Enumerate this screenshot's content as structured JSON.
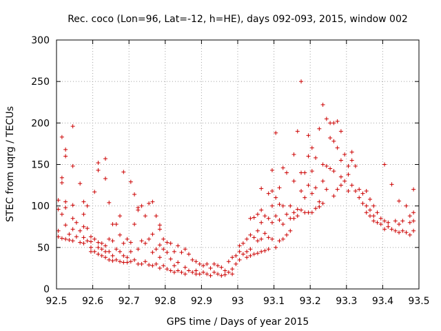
{
  "chart_data": {
    "type": "scatter",
    "title": "Rec. coco (Lon=96, Lat=-12, h=HE), days 092-093, 2015, window 002",
    "xlabel": "GPS time / Days of year 2015",
    "ylabel": "STEC from uqrg / TECUs",
    "xlim": [
      92.5,
      93.5
    ],
    "ylim": [
      0,
      300
    ],
    "x_ticks": [
      "92.5",
      "92.6",
      "92.7",
      "92.8",
      "92.9",
      "93",
      "93.1",
      "93.2",
      "93.3",
      "93.4",
      "93.5"
    ],
    "y_ticks": [
      "0",
      "50",
      "100",
      "150",
      "200",
      "250",
      "300"
    ],
    "grid": true,
    "marker": "+",
    "color": "#cc0000",
    "points": [
      [
        92.505,
        107
      ],
      [
        92.505,
        96
      ],
      [
        92.505,
        70
      ],
      [
        92.505,
        63
      ],
      [
        92.515,
        183
      ],
      [
        92.515,
        134
      ],
      [
        92.515,
        128
      ],
      [
        92.515,
        90
      ],
      [
        92.515,
        61
      ],
      [
        92.525,
        168
      ],
      [
        92.525,
        160
      ],
      [
        92.525,
        105
      ],
      [
        92.525,
        98
      ],
      [
        92.525,
        77
      ],
      [
        92.525,
        60
      ],
      [
        92.535,
        66
      ],
      [
        92.535,
        59
      ],
      [
        92.545,
        196
      ],
      [
        92.545,
        148
      ],
      [
        92.545,
        101
      ],
      [
        92.545,
        85
      ],
      [
        92.545,
        72
      ],
      [
        92.545,
        58
      ],
      [
        92.555,
        80
      ],
      [
        92.555,
        63
      ],
      [
        92.565,
        127
      ],
      [
        92.565,
        70
      ],
      [
        92.565,
        56
      ],
      [
        92.575,
        105
      ],
      [
        92.575,
        90
      ],
      [
        92.575,
        75
      ],
      [
        92.575,
        62
      ],
      [
        92.575,
        55
      ],
      [
        92.585,
        100
      ],
      [
        92.585,
        73
      ],
      [
        92.585,
        58
      ],
      [
        92.595,
        63
      ],
      [
        92.595,
        57
      ],
      [
        92.595,
        50
      ],
      [
        92.595,
        45
      ],
      [
        92.605,
        117
      ],
      [
        92.605,
        60
      ],
      [
        92.605,
        45
      ],
      [
        92.615,
        152
      ],
      [
        92.615,
        143
      ],
      [
        92.615,
        56
      ],
      [
        92.615,
        50
      ],
      [
        92.615,
        42
      ],
      [
        92.625,
        55
      ],
      [
        92.625,
        48
      ],
      [
        92.625,
        40
      ],
      [
        92.635,
        157
      ],
      [
        92.635,
        133
      ],
      [
        92.635,
        52
      ],
      [
        92.635,
        45
      ],
      [
        92.635,
        38
      ],
      [
        92.645,
        104
      ],
      [
        92.645,
        60
      ],
      [
        92.645,
        45
      ],
      [
        92.645,
        35
      ],
      [
        92.655,
        78
      ],
      [
        92.655,
        58
      ],
      [
        92.655,
        40
      ],
      [
        92.655,
        34
      ],
      [
        92.665,
        78
      ],
      [
        92.665,
        48
      ],
      [
        92.665,
        35
      ],
      [
        92.675,
        88
      ],
      [
        92.675,
        65
      ],
      [
        92.675,
        45
      ],
      [
        92.675,
        33
      ],
      [
        92.685,
        141
      ],
      [
        92.685,
        55
      ],
      [
        92.685,
        40
      ],
      [
        92.685,
        32
      ],
      [
        92.695,
        60
      ],
      [
        92.695,
        38
      ],
      [
        92.695,
        32
      ],
      [
        92.705,
        129
      ],
      [
        92.705,
        56
      ],
      [
        92.705,
        45
      ],
      [
        92.705,
        33
      ],
      [
        92.715,
        114
      ],
      [
        92.715,
        78
      ],
      [
        92.715,
        35
      ],
      [
        92.725,
        98
      ],
      [
        92.725,
        95
      ],
      [
        92.725,
        48
      ],
      [
        92.725,
        30
      ],
      [
        92.735,
        100
      ],
      [
        92.735,
        58
      ],
      [
        92.735,
        30
      ],
      [
        92.745,
        88
      ],
      [
        92.745,
        55
      ],
      [
        92.745,
        33
      ],
      [
        92.755,
        103
      ],
      [
        92.755,
        60
      ],
      [
        92.755,
        29
      ],
      [
        92.765,
        105
      ],
      [
        92.765,
        66
      ],
      [
        92.765,
        44
      ],
      [
        92.765,
        28
      ],
      [
        92.775,
        88
      ],
      [
        92.775,
        48
      ],
      [
        92.775,
        30
      ],
      [
        92.785,
        77
      ],
      [
        92.785,
        72
      ],
      [
        92.785,
        53
      ],
      [
        92.785,
        38
      ],
      [
        92.785,
        25
      ],
      [
        92.795,
        60
      ],
      [
        92.795,
        48
      ],
      [
        92.795,
        28
      ],
      [
        92.805,
        56
      ],
      [
        92.805,
        44
      ],
      [
        92.805,
        24
      ],
      [
        92.815,
        55
      ],
      [
        92.815,
        36
      ],
      [
        92.815,
        22
      ],
      [
        92.825,
        45
      ],
      [
        92.825,
        28
      ],
      [
        92.825,
        20
      ],
      [
        92.835,
        52
      ],
      [
        92.835,
        32
      ],
      [
        92.835,
        22
      ],
      [
        92.845,
        44
      ],
      [
        92.845,
        20
      ],
      [
        92.855,
        48
      ],
      [
        92.855,
        26
      ],
      [
        92.855,
        18
      ],
      [
        92.865,
        42
      ],
      [
        92.865,
        22
      ],
      [
        92.875,
        35
      ],
      [
        92.875,
        20
      ],
      [
        92.885,
        33
      ],
      [
        92.885,
        22
      ],
      [
        92.885,
        18
      ],
      [
        92.895,
        30
      ],
      [
        92.895,
        18
      ],
      [
        92.905,
        28
      ],
      [
        92.905,
        20
      ],
      [
        92.915,
        30
      ],
      [
        92.915,
        18
      ],
      [
        92.925,
        25
      ],
      [
        92.925,
        16
      ],
      [
        92.935,
        30
      ],
      [
        92.935,
        20
      ],
      [
        92.945,
        28
      ],
      [
        92.945,
        18
      ],
      [
        92.955,
        26
      ],
      [
        92.955,
        16
      ],
      [
        92.965,
        22
      ],
      [
        92.965,
        17
      ],
      [
        92.975,
        33
      ],
      [
        92.975,
        20
      ],
      [
        92.985,
        38
      ],
      [
        92.985,
        24
      ],
      [
        92.985,
        18
      ],
      [
        92.995,
        40
      ],
      [
        92.995,
        30
      ],
      [
        93.005,
        52
      ],
      [
        93.005,
        45
      ],
      [
        93.005,
        35
      ],
      [
        93.015,
        55
      ],
      [
        93.015,
        42
      ],
      [
        93.025,
        60
      ],
      [
        93.025,
        45
      ],
      [
        93.025,
        38
      ],
      [
        93.035,
        85
      ],
      [
        93.035,
        65
      ],
      [
        93.035,
        48
      ],
      [
        93.035,
        40
      ],
      [
        93.045,
        86
      ],
      [
        93.045,
        62
      ],
      [
        93.045,
        42
      ],
      [
        93.055,
        90
      ],
      [
        93.055,
        70
      ],
      [
        93.055,
        58
      ],
      [
        93.055,
        43
      ],
      [
        93.065,
        121
      ],
      [
        93.065,
        95
      ],
      [
        93.065,
        80
      ],
      [
        93.065,
        60
      ],
      [
        93.065,
        45
      ],
      [
        93.075,
        88
      ],
      [
        93.075,
        67
      ],
      [
        93.075,
        46
      ],
      [
        93.085,
        115
      ],
      [
        93.085,
        85
      ],
      [
        93.085,
        62
      ],
      [
        93.085,
        48
      ],
      [
        93.095,
        143
      ],
      [
        93.095,
        118
      ],
      [
        93.095,
        100
      ],
      [
        93.095,
        80
      ],
      [
        93.095,
        60
      ],
      [
        93.105,
        188
      ],
      [
        93.105,
        110
      ],
      [
        93.105,
        88
      ],
      [
        93.105,
        50
      ],
      [
        93.115,
        122
      ],
      [
        93.115,
        102
      ],
      [
        93.115,
        83
      ],
      [
        93.115,
        58
      ],
      [
        93.125,
        146
      ],
      [
        93.125,
        100
      ],
      [
        93.125,
        78
      ],
      [
        93.125,
        60
      ],
      [
        93.135,
        140
      ],
      [
        93.135,
        90
      ],
      [
        93.135,
        65
      ],
      [
        93.145,
        100
      ],
      [
        93.145,
        85
      ],
      [
        93.145,
        70
      ],
      [
        93.155,
        162
      ],
      [
        93.155,
        130
      ],
      [
        93.155,
        92
      ],
      [
        93.155,
        85
      ],
      [
        93.165,
        190
      ],
      [
        93.165,
        96
      ],
      [
        93.165,
        88
      ],
      [
        93.175,
        250
      ],
      [
        93.175,
        140
      ],
      [
        93.175,
        118
      ],
      [
        93.175,
        95
      ],
      [
        93.185,
        140
      ],
      [
        93.185,
        110
      ],
      [
        93.185,
        92
      ],
      [
        93.195,
        185
      ],
      [
        93.195,
        160
      ],
      [
        93.195,
        125
      ],
      [
        93.195,
        92
      ],
      [
        93.205,
        170
      ],
      [
        93.205,
        142
      ],
      [
        93.205,
        115
      ],
      [
        93.205,
        92
      ],
      [
        93.215,
        158
      ],
      [
        93.215,
        122
      ],
      [
        93.215,
        97
      ],
      [
        93.225,
        193
      ],
      [
        93.225,
        105
      ],
      [
        93.225,
        99
      ],
      [
        93.235,
        222
      ],
      [
        93.235,
        150
      ],
      [
        93.235,
        130
      ],
      [
        93.235,
        103
      ],
      [
        93.245,
        205
      ],
      [
        93.245,
        148
      ],
      [
        93.245,
        120
      ],
      [
        93.255,
        200
      ],
      [
        93.255,
        182
      ],
      [
        93.255,
        145
      ],
      [
        93.265,
        200
      ],
      [
        93.265,
        178
      ],
      [
        93.265,
        142
      ],
      [
        93.265,
        112
      ],
      [
        93.275,
        202
      ],
      [
        93.275,
        170
      ],
      [
        93.275,
        120
      ],
      [
        93.285,
        190
      ],
      [
        93.285,
        155
      ],
      [
        93.285,
        135
      ],
      [
        93.285,
        125
      ],
      [
        93.295,
        162
      ],
      [
        93.295,
        130
      ],
      [
        93.305,
        148
      ],
      [
        93.305,
        138
      ],
      [
        93.305,
        118
      ],
      [
        93.315,
        165
      ],
      [
        93.315,
        155
      ],
      [
        93.315,
        125
      ],
      [
        93.325,
        148
      ],
      [
        93.325,
        118
      ],
      [
        93.335,
        120
      ],
      [
        93.335,
        110
      ],
      [
        93.345,
        115
      ],
      [
        93.345,
        103
      ],
      [
        93.355,
        118
      ],
      [
        93.355,
        100
      ],
      [
        93.355,
        92
      ],
      [
        93.365,
        108
      ],
      [
        93.365,
        95
      ],
      [
        93.365,
        88
      ],
      [
        93.375,
        100
      ],
      [
        93.375,
        88
      ],
      [
        93.375,
        82
      ],
      [
        93.385,
        92
      ],
      [
        93.385,
        80
      ],
      [
        93.395,
        85
      ],
      [
        93.395,
        78
      ],
      [
        93.405,
        150
      ],
      [
        93.405,
        82
      ],
      [
        93.405,
        72
      ],
      [
        93.415,
        80
      ],
      [
        93.415,
        75
      ],
      [
        93.425,
        126
      ],
      [
        93.425,
        72
      ],
      [
        93.435,
        82
      ],
      [
        93.435,
        70
      ],
      [
        93.445,
        106
      ],
      [
        93.445,
        78
      ],
      [
        93.445,
        68
      ],
      [
        93.455,
        82
      ],
      [
        93.455,
        70
      ],
      [
        93.465,
        100
      ],
      [
        93.465,
        68
      ],
      [
        93.475,
        88
      ],
      [
        93.475,
        80
      ],
      [
        93.475,
        65
      ],
      [
        93.485,
        120
      ],
      [
        93.485,
        92
      ],
      [
        93.485,
        82
      ],
      [
        93.485,
        70
      ]
    ]
  }
}
